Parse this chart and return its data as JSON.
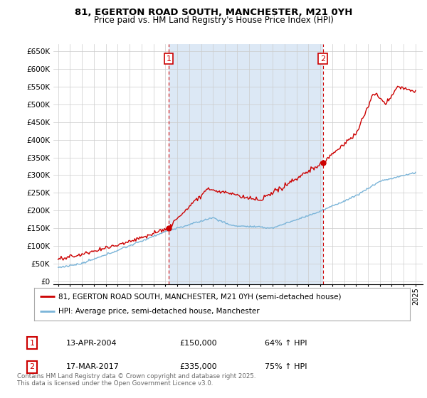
{
  "title1": "81, EGERTON ROAD SOUTH, MANCHESTER, M21 0YH",
  "title2": "Price paid vs. HM Land Registry's House Price Index (HPI)",
  "ylabel_ticks": [
    "£0",
    "£50K",
    "£100K",
    "£150K",
    "£200K",
    "£250K",
    "£300K",
    "£350K",
    "£400K",
    "£450K",
    "£500K",
    "£550K",
    "£600K",
    "£650K"
  ],
  "ytick_vals": [
    0,
    50000,
    100000,
    150000,
    200000,
    250000,
    300000,
    350000,
    400000,
    450000,
    500000,
    550000,
    600000,
    650000
  ],
  "sale1_year": 2004.28,
  "sale1_price": 150000,
  "sale2_year": 2017.21,
  "sale2_price": 335000,
  "legend_red": "81, EGERTON ROAD SOUTH, MANCHESTER, M21 0YH (semi-detached house)",
  "legend_blue": "HPI: Average price, semi-detached house, Manchester",
  "note1_num": "1",
  "note1_date": "13-APR-2004",
  "note1_price": "£150,000",
  "note1_hpi": "64% ↑ HPI",
  "note2_num": "2",
  "note2_date": "17-MAR-2017",
  "note2_price": "£335,000",
  "note2_hpi": "75% ↑ HPI",
  "footer": "Contains HM Land Registry data © Crown copyright and database right 2025.\nThis data is licensed under the Open Government Licence v3.0.",
  "red_color": "#cc0000",
  "blue_color": "#7ab4d8",
  "shade_color": "#dce8f5",
  "bg_color": "#ffffff"
}
